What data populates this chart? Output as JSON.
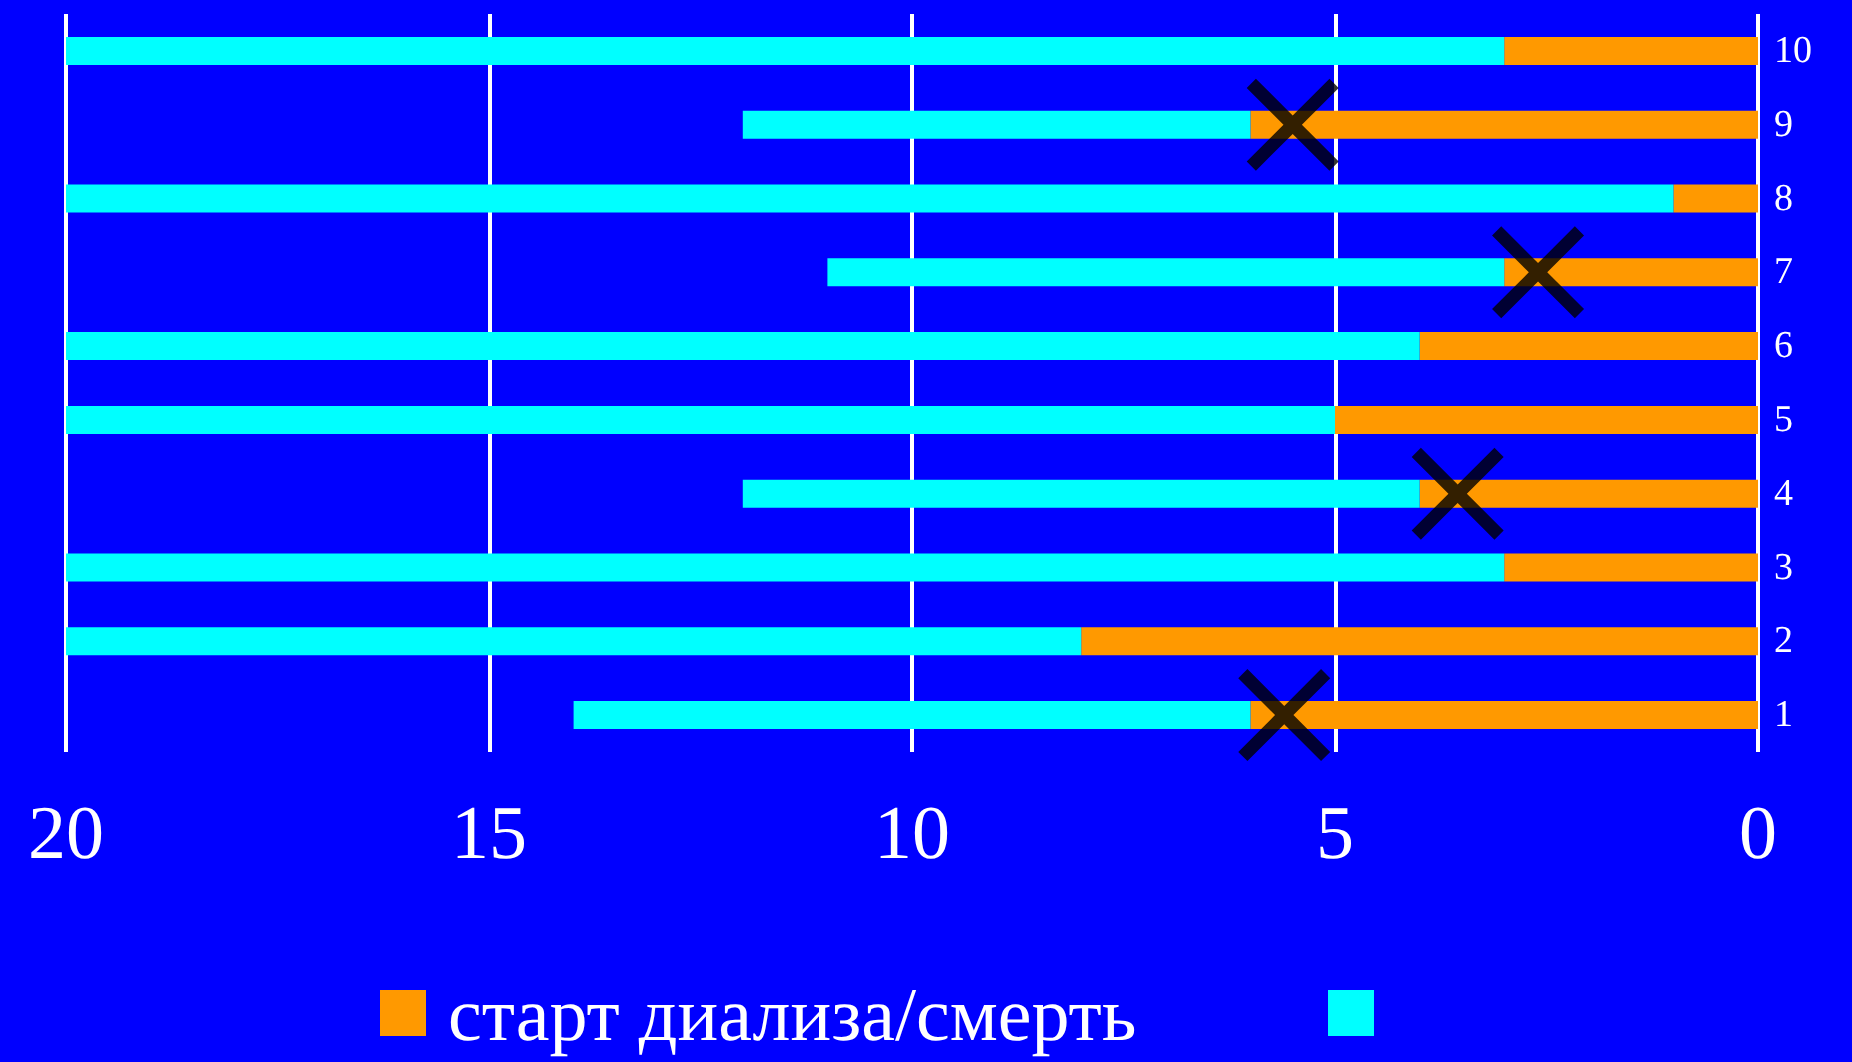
{
  "chart_data": {
    "type": "bar",
    "orientation": "horizontal",
    "stacked": true,
    "categories": [
      "10",
      "9",
      "8",
      "7",
      "6",
      "5",
      "4",
      "3",
      "2",
      "1"
    ],
    "series": [
      {
        "name": "старт диализа/смерть",
        "color": "#ff9900",
        "values": [
          3,
          6,
          1,
          3,
          4,
          5,
          4,
          3,
          8,
          6
        ]
      },
      {
        "color": "#00ffff",
        "values": [
          17,
          6,
          19,
          8,
          16,
          15,
          8,
          17,
          12,
          8
        ]
      },
      {
        "type": "scatter",
        "marker": "cross",
        "color": "#000000",
        "values": [
          null,
          5.5,
          null,
          2.6,
          null,
          null,
          3.55,
          null,
          null,
          5.6
        ]
      }
    ],
    "xlim": [
      20,
      0
    ],
    "xticks": [
      20,
      15,
      10,
      5,
      0
    ],
    "grid": "x",
    "legend": "bottom"
  }
}
